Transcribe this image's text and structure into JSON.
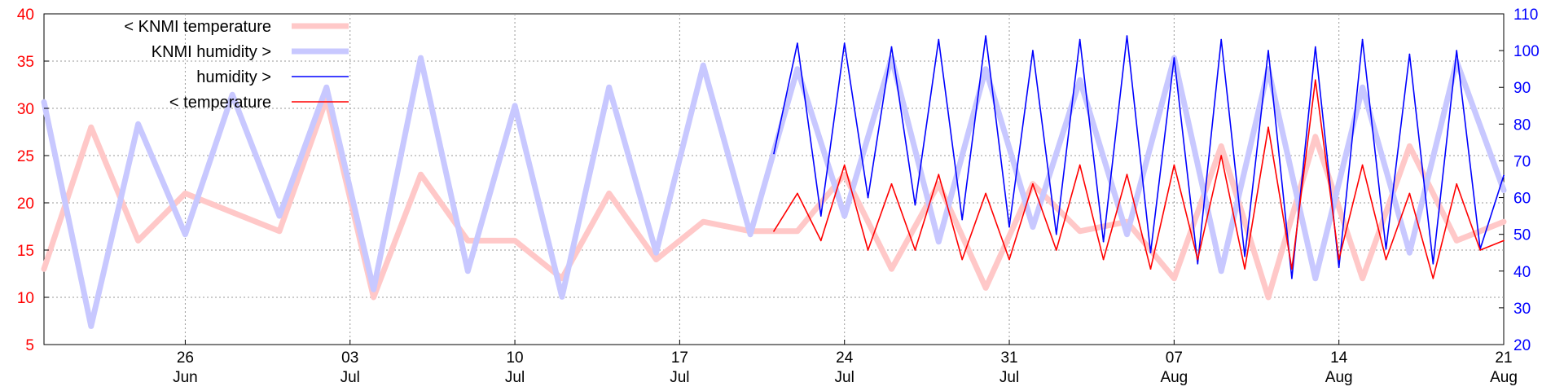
{
  "chart_data": {
    "type": "line",
    "left_axis": {
      "ylim": [
        5,
        40
      ],
      "ticks": [
        5,
        10,
        15,
        20,
        25,
        30,
        35,
        40
      ],
      "color": "#ff0000"
    },
    "right_axis": {
      "ylim": [
        20,
        110
      ],
      "ticks": [
        20,
        30,
        40,
        50,
        60,
        70,
        80,
        90,
        100,
        110
      ],
      "color": "#0000ff"
    },
    "x_axis": {
      "range": [
        "2023-06-20",
        "2023-08-21"
      ],
      "ticks": [
        {
          "date": "2023-06-26",
          "day": "26",
          "month": "Jun"
        },
        {
          "date": "2023-07-03",
          "day": "03",
          "month": "Jul"
        },
        {
          "date": "2023-07-10",
          "day": "10",
          "month": "Jul"
        },
        {
          "date": "2023-07-17",
          "day": "17",
          "month": "Jul"
        },
        {
          "date": "2023-07-24",
          "day": "24",
          "month": "Jul"
        },
        {
          "date": "2023-07-31",
          "day": "31",
          "month": "Jul"
        },
        {
          "date": "2023-08-07",
          "day": "07",
          "month": "Aug"
        },
        {
          "date": "2023-08-14",
          "day": "14",
          "month": "Aug"
        },
        {
          "date": "2023-08-21",
          "day": "21",
          "month": "Aug"
        }
      ]
    },
    "grid": true,
    "legend_position": "top-left",
    "series": [
      {
        "name": "< KNMI temperature",
        "axis": "left",
        "color": "#ffc8c8",
        "x": [
          "2023-06-20",
          "2023-06-22",
          "2023-06-24",
          "2023-06-26",
          "2023-06-28",
          "2023-06-30",
          "2023-07-02",
          "2023-07-04",
          "2023-07-06",
          "2023-07-08",
          "2023-07-10",
          "2023-07-12",
          "2023-07-14",
          "2023-07-16",
          "2023-07-18",
          "2023-07-20",
          "2023-07-22",
          "2023-07-24",
          "2023-07-26",
          "2023-07-28",
          "2023-07-30",
          "2023-08-01",
          "2023-08-03",
          "2023-08-05",
          "2023-08-07",
          "2023-08-09",
          "2023-08-11",
          "2023-08-13",
          "2023-08-15",
          "2023-08-17",
          "2023-08-19",
          "2023-08-21"
        ],
        "y": [
          13,
          28,
          16,
          21,
          19,
          17,
          31,
          10,
          23,
          16,
          16,
          12,
          21,
          14,
          18,
          17,
          17,
          23,
          13,
          22,
          11,
          22,
          17,
          18,
          12,
          26,
          10,
          27,
          12,
          26,
          16,
          18
        ]
      },
      {
        "name": "KNMI humidity >",
        "axis": "right",
        "color": "#c8c8ff",
        "x": [
          "2023-06-20",
          "2023-06-22",
          "2023-06-24",
          "2023-06-26",
          "2023-06-28",
          "2023-06-30",
          "2023-07-02",
          "2023-07-04",
          "2023-07-06",
          "2023-07-08",
          "2023-07-10",
          "2023-07-12",
          "2023-07-14",
          "2023-07-16",
          "2023-07-18",
          "2023-07-20",
          "2023-07-22",
          "2023-07-24",
          "2023-07-26",
          "2023-07-28",
          "2023-07-30",
          "2023-08-01",
          "2023-08-03",
          "2023-08-05",
          "2023-08-07",
          "2023-08-09",
          "2023-08-11",
          "2023-08-13",
          "2023-08-15",
          "2023-08-17",
          "2023-08-19",
          "2023-08-21"
        ],
        "y": [
          86,
          25,
          80,
          50,
          88,
          55,
          90,
          35,
          98,
          40,
          85,
          33,
          90,
          45,
          96,
          50,
          95,
          55,
          98,
          48,
          95,
          52,
          92,
          50,
          98,
          40,
          95,
          38,
          90,
          45,
          97,
          62
        ]
      },
      {
        "name": "humidity >",
        "axis": "right",
        "color": "#0000ff",
        "x": [
          "2023-07-21",
          "2023-07-22",
          "2023-07-23",
          "2023-07-24",
          "2023-07-25",
          "2023-07-26",
          "2023-07-27",
          "2023-07-28",
          "2023-07-29",
          "2023-07-30",
          "2023-07-31",
          "2023-08-01",
          "2023-08-02",
          "2023-08-03",
          "2023-08-04",
          "2023-08-05",
          "2023-08-06",
          "2023-08-07",
          "2023-08-08",
          "2023-08-09",
          "2023-08-10",
          "2023-08-11",
          "2023-08-12",
          "2023-08-13",
          "2023-08-14",
          "2023-08-15",
          "2023-08-16",
          "2023-08-17",
          "2023-08-18",
          "2023-08-19",
          "2023-08-20",
          "2023-08-21"
        ],
        "y": [
          72,
          102,
          55,
          102,
          60,
          101,
          58,
          103,
          54,
          104,
          52,
          100,
          50,
          103,
          48,
          104,
          45,
          98,
          42,
          103,
          44,
          100,
          38,
          101,
          41,
          103,
          46,
          99,
          42,
          100,
          46,
          66
        ]
      },
      {
        "name": "< temperature",
        "axis": "left",
        "color": "#ff0000",
        "x": [
          "2023-07-21",
          "2023-07-22",
          "2023-07-23",
          "2023-07-24",
          "2023-07-25",
          "2023-07-26",
          "2023-07-27",
          "2023-07-28",
          "2023-07-29",
          "2023-07-30",
          "2023-07-31",
          "2023-08-01",
          "2023-08-02",
          "2023-08-03",
          "2023-08-04",
          "2023-08-05",
          "2023-08-06",
          "2023-08-07",
          "2023-08-08",
          "2023-08-09",
          "2023-08-10",
          "2023-08-11",
          "2023-08-12",
          "2023-08-13",
          "2023-08-14",
          "2023-08-15",
          "2023-08-16",
          "2023-08-17",
          "2023-08-18",
          "2023-08-19",
          "2023-08-20",
          "2023-08-21"
        ],
        "y": [
          17,
          21,
          16,
          24,
          15,
          22,
          15,
          23,
          14,
          21,
          14,
          22,
          15,
          24,
          14,
          23,
          13,
          24,
          14,
          25,
          13,
          28,
          13,
          33,
          14,
          24,
          14,
          21,
          12,
          22,
          15,
          16
        ]
      }
    ]
  }
}
